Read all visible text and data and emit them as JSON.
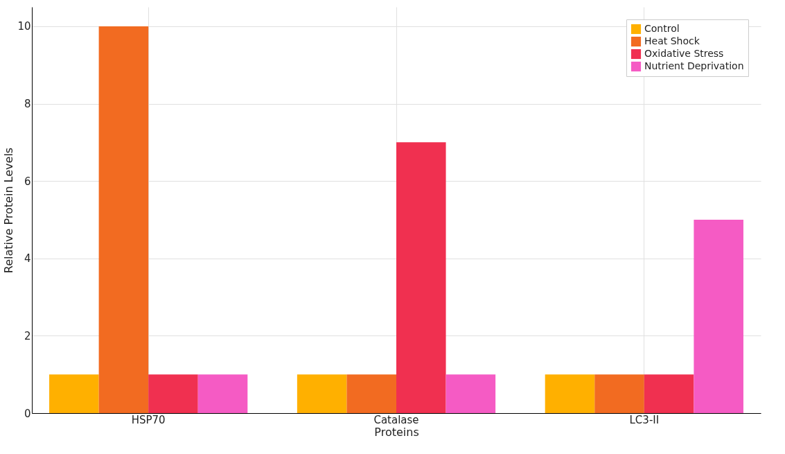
{
  "chart_data": {
    "type": "bar",
    "xlabel": "Proteins",
    "ylabel": "Relative Protein Levels",
    "categories": [
      "HSP70",
      "Catalase",
      "LC3-II"
    ],
    "series": [
      {
        "name": "Control",
        "color": "#ffb000",
        "values": [
          1,
          1,
          1
        ]
      },
      {
        "name": "Heat Shock",
        "color": "#f26b21",
        "values": [
          10,
          1,
          1
        ]
      },
      {
        "name": "Oxidative Stress",
        "color": "#f03050",
        "values": [
          1,
          7,
          1
        ]
      },
      {
        "name": "Nutrient Deprivation",
        "color": "#f55bc4",
        "values": [
          1,
          1,
          5
        ]
      }
    ],
    "ylim": [
      0,
      10.5
    ],
    "yticks": [
      0,
      2,
      4,
      6,
      8,
      10
    ],
    "grid": true,
    "legend": "top right"
  }
}
